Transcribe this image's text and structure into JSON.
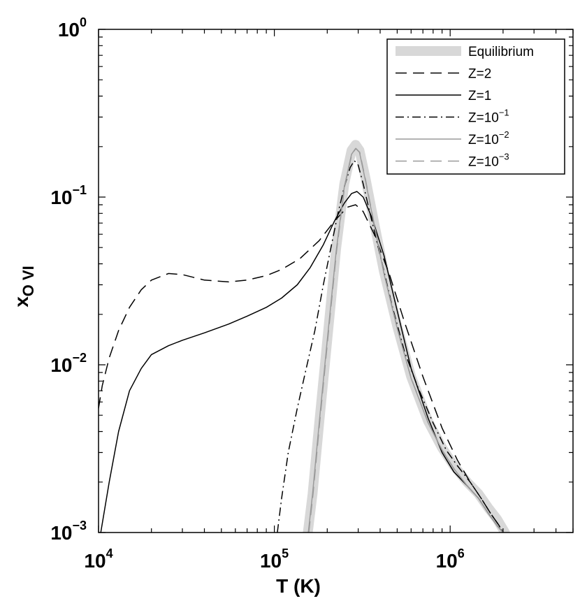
{
  "chart_data": {
    "type": "line",
    "xscale": "log",
    "yscale": "log",
    "xlim": [
      10000,
      5000000
    ],
    "ylim": [
      0.001,
      1
    ],
    "xlabel": "T (K)",
    "ylabel": "x",
    "ylabel_subscript": "O VI",
    "x_ticks": [
      {
        "value": 10000,
        "base": "10",
        "exp": "4"
      },
      {
        "value": 100000,
        "base": "10",
        "exp": "5"
      },
      {
        "value": 1000000,
        "base": "10",
        "exp": "6"
      }
    ],
    "y_ticks": [
      {
        "value": 0.001,
        "base": "10",
        "exp": "−3"
      },
      {
        "value": 0.01,
        "base": "10",
        "exp": "−2"
      },
      {
        "value": 0.1,
        "base": "10",
        "exp": "−1"
      },
      {
        "value": 1,
        "base": "10",
        "exp": "0"
      }
    ],
    "legend_position": "top-right",
    "series": [
      {
        "name": "Equilibrium",
        "label_base": "Equilibrium",
        "label_exp": "",
        "color": "#d8d8d8",
        "width": 14,
        "dash": "",
        "x": [
          155000,
          165000,
          180000,
          200000,
          225000,
          250000,
          275000,
          290000,
          305000,
          330000,
          370000,
          420000,
          500000,
          600000,
          750000,
          900000,
          1050000,
          1250000,
          1450000,
          1650000,
          1850000,
          2050000
        ],
        "y": [
          0.001,
          0.0017,
          0.0045,
          0.014,
          0.05,
          0.12,
          0.19,
          0.205,
          0.19,
          0.13,
          0.07,
          0.036,
          0.017,
          0.0085,
          0.0046,
          0.0032,
          0.0025,
          0.002,
          0.0017,
          0.0014,
          0.0012,
          0.001
        ]
      },
      {
        "name": "Z=2",
        "label_base": "Z=2",
        "label_exp": "",
        "color": "#000000",
        "width": 1.5,
        "dash": "16,9",
        "x": [
          10000,
          10500,
          11500,
          13000,
          15000,
          17500,
          20000,
          25000,
          30000,
          40000,
          55000,
          70000,
          90000,
          110000,
          140000,
          180000,
          220000,
          260000,
          290000,
          320000,
          370000,
          450000,
          550000,
          700000,
          900000,
          1100000,
          1300000,
          1500000,
          1700000,
          1900000,
          2000000
        ],
        "y": [
          0.0055,
          0.0075,
          0.011,
          0.016,
          0.022,
          0.028,
          0.032,
          0.035,
          0.0345,
          0.032,
          0.0312,
          0.032,
          0.034,
          0.037,
          0.043,
          0.055,
          0.072,
          0.087,
          0.09,
          0.082,
          0.06,
          0.035,
          0.018,
          0.0085,
          0.0042,
          0.0027,
          0.002,
          0.0016,
          0.0013,
          0.0011,
          0.001
        ]
      },
      {
        "name": "Z=1",
        "label_base": "Z=1",
        "label_exp": "",
        "color": "#000000",
        "width": 1.5,
        "dash": "",
        "x": [
          10300,
          11500,
          13000,
          15000,
          17500,
          20000,
          25000,
          30000,
          40000,
          55000,
          70000,
          90000,
          110000,
          135000,
          160000,
          190000,
          220000,
          250000,
          275000,
          295000,
          320000,
          360000,
          420000,
          500000,
          600000,
          750000,
          900000,
          1050000,
          1250000,
          1450000,
          1650000,
          1850000,
          2000000
        ],
        "y": [
          0.001,
          0.002,
          0.004,
          0.007,
          0.0095,
          0.0115,
          0.013,
          0.014,
          0.0155,
          0.0175,
          0.0195,
          0.022,
          0.025,
          0.03,
          0.038,
          0.052,
          0.072,
          0.092,
          0.105,
          0.108,
          0.1,
          0.075,
          0.045,
          0.021,
          0.0095,
          0.0048,
          0.003,
          0.0023,
          0.0019,
          0.0016,
          0.0013,
          0.0011,
          0.001
        ]
      },
      {
        "name": "Z=10^-1",
        "label_base": "Z=10",
        "label_exp": "−1",
        "color": "#000000",
        "width": 1.5,
        "dash": "12,5,2,5",
        "x": [
          104000,
          110000,
          120000,
          135000,
          150000,
          170000,
          190000,
          210000,
          230000,
          250000,
          270000,
          285000,
          300000,
          320000,
          350000,
          400000,
          470000,
          550000,
          650000,
          800000,
          950000,
          1100000,
          1300000,
          1500000,
          1700000,
          1900000,
          2000000
        ],
        "y": [
          0.001,
          0.0016,
          0.003,
          0.0055,
          0.009,
          0.016,
          0.03,
          0.05,
          0.08,
          0.115,
          0.15,
          0.165,
          0.155,
          0.12,
          0.08,
          0.045,
          0.022,
          0.012,
          0.0075,
          0.0045,
          0.0031,
          0.0025,
          0.002,
          0.0016,
          0.0013,
          0.0011,
          0.001
        ]
      },
      {
        "name": "Z=10^-2",
        "label_base": "Z=10",
        "label_exp": "−2",
        "color": "#9a9a9a",
        "width": 1.5,
        "dash": "",
        "x": [
          156000,
          165000,
          180000,
          200000,
          225000,
          250000,
          275000,
          290000,
          305000,
          330000,
          370000,
          420000,
          500000,
          600000,
          750000,
          900000,
          1050000,
          1250000,
          1450000,
          1650000,
          1850000,
          2000000
        ],
        "y": [
          0.001,
          0.0017,
          0.0045,
          0.014,
          0.048,
          0.115,
          0.18,
          0.195,
          0.185,
          0.125,
          0.068,
          0.035,
          0.0165,
          0.0083,
          0.0045,
          0.0031,
          0.0024,
          0.0019,
          0.0016,
          0.0013,
          0.0011,
          0.001
        ]
      },
      {
        "name": "Z=10^-3",
        "label_base": "Z=10",
        "label_exp": "−3",
        "color": "#9a9a9a",
        "width": 1.5,
        "dash": "16,9",
        "x": [
          157000,
          166000,
          181000,
          201000,
          226000,
          251000,
          276000,
          291000,
          306000,
          331000,
          371000,
          421000,
          501000,
          601000,
          751000,
          901000,
          1051000,
          1251000,
          1451000,
          1651000,
          1851000,
          2000000
        ],
        "y": [
          0.001,
          0.0017,
          0.0045,
          0.014,
          0.048,
          0.115,
          0.18,
          0.195,
          0.185,
          0.125,
          0.068,
          0.035,
          0.0165,
          0.0083,
          0.0045,
          0.0031,
          0.0024,
          0.0019,
          0.0016,
          0.0013,
          0.0011,
          0.001
        ]
      }
    ]
  }
}
